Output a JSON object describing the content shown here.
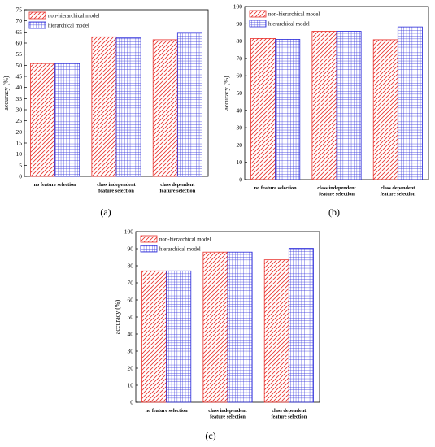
{
  "colors": {
    "non_hierarchical": "#e8322d",
    "hierarchical": "#2626d9"
  },
  "chart_data": [
    {
      "type": "bar",
      "panel_label": "(a)",
      "categories": [
        [
          "no feature selection"
        ],
        [
          "class independent",
          "feature selection"
        ],
        [
          "class dependent",
          "feature selection"
        ]
      ],
      "series": [
        {
          "name": "non-hierarchical model",
          "values": [
            50.8,
            62.8,
            61.5
          ]
        },
        {
          "name": "hierarchical model",
          "values": [
            50.8,
            62.3,
            64.8
          ]
        }
      ],
      "ylabel": "accuracy (%)",
      "ylim": [
        0,
        75
      ],
      "ystep": 5,
      "legend": "top-left"
    },
    {
      "type": "bar",
      "panel_label": "(b)",
      "categories": [
        [
          "no feature selection"
        ],
        [
          "class independent",
          "feature selection"
        ],
        [
          "class dependent",
          "feature selection"
        ]
      ],
      "series": [
        {
          "name": "non-hierarchical model",
          "values": [
            81.5,
            85.7,
            80.8
          ]
        },
        {
          "name": "hierarchical model",
          "values": [
            81.0,
            85.7,
            88.2
          ]
        }
      ],
      "ylabel": "accuracy (%)",
      "ylim": [
        0,
        100
      ],
      "ystep": 10,
      "legend": "top-left"
    },
    {
      "type": "bar",
      "panel_label": "(c)",
      "categories": [
        [
          "no feature selection"
        ],
        [
          "class independent",
          "feature selection"
        ],
        [
          "class dependent",
          "feature selection"
        ]
      ],
      "series": [
        {
          "name": "non-hierarchical model",
          "values": [
            77.0,
            88.0,
            83.5
          ]
        },
        {
          "name": "hierarchical model",
          "values": [
            77.0,
            88.0,
            90.2
          ]
        }
      ],
      "ylabel": "accuracy (%)",
      "ylim": [
        0,
        100
      ],
      "ystep": 10,
      "legend": "top-left"
    }
  ]
}
